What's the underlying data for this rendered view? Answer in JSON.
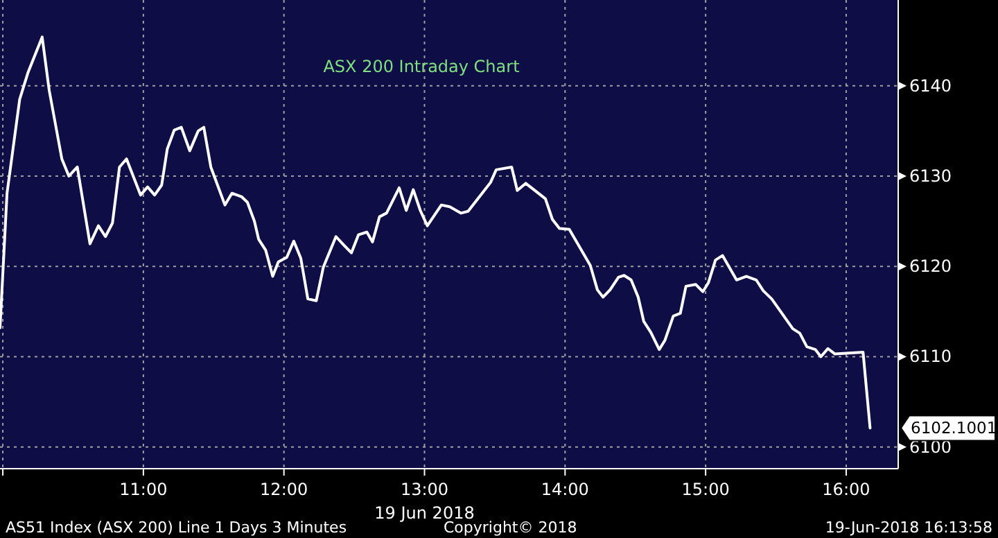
{
  "chart_data": {
    "type": "line",
    "title": "ASX 200 Intraday Chart",
    "xlabel": "19 Jun 2018",
    "x": [
      9.98,
      10.03,
      10.12,
      10.18,
      10.28,
      10.33,
      10.42,
      10.47,
      10.53,
      10.62,
      10.68,
      10.73,
      10.78,
      10.83,
      10.88,
      10.93,
      10.98,
      11.03,
      11.08,
      11.13,
      11.17,
      11.22,
      11.27,
      11.33,
      11.39,
      11.43,
      11.48,
      11.58,
      11.63,
      11.7,
      11.74,
      11.79,
      11.82,
      11.87,
      11.92,
      11.96,
      12.02,
      12.07,
      12.12,
      12.17,
      12.23,
      12.28,
      12.37,
      12.43,
      12.48,
      12.53,
      12.59,
      12.63,
      12.68,
      12.73,
      12.82,
      12.87,
      12.92,
      12.97,
      13.02,
      13.12,
      13.18,
      13.26,
      13.31,
      13.41,
      13.47,
      13.51,
      13.62,
      13.66,
      13.72,
      13.86,
      13.91,
      13.96,
      14.03,
      14.18,
      14.23,
      14.27,
      14.32,
      14.38,
      14.42,
      14.47,
      14.52,
      14.56,
      14.61,
      14.67,
      14.71,
      14.77,
      14.82,
      14.86,
      14.93,
      14.98,
      15.02,
      15.07,
      15.12,
      15.22,
      15.29,
      15.36,
      15.41,
      15.47,
      15.62,
      15.67,
      15.72,
      15.78,
      15.82,
      15.87,
      15.92,
      16.12,
      16.17
    ],
    "series": [
      {
        "color": "#ffffff",
        "values": [
          6113.2,
          6128.1,
          6138.5,
          6141.5,
          6145.4,
          6139.5,
          6131.9,
          6130,
          6131,
          6122.5,
          6124.5,
          6123.3,
          6124.8,
          6131,
          6131.9,
          6129.9,
          6127.9,
          6128.8,
          6127.9,
          6129,
          6133,
          6135.1,
          6135.4,
          6132.8,
          6135,
          6135.4,
          6131,
          6126.8,
          6128.1,
          6127.7,
          6127.1,
          6125,
          6123,
          6121.8,
          6118.9,
          6120.5,
          6121,
          6122.8,
          6120.9,
          6116.4,
          6116.2,
          6119.9,
          6123.3,
          6122.3,
          6121.5,
          6123.5,
          6123.8,
          6122.7,
          6125.5,
          6125.9,
          6128.7,
          6126.2,
          6128.5,
          6126.2,
          6124.5,
          6126.8,
          6126.6,
          6125.9,
          6126.1,
          6128.1,
          6129.3,
          6130.7,
          6131,
          6128.4,
          6129.2,
          6127.5,
          6125.2,
          6124.2,
          6124.1,
          6120.1,
          6117.4,
          6116.6,
          6117.4,
          6118.8,
          6119,
          6118.5,
          6116.6,
          6113.9,
          6112.7,
          6110.8,
          6111.8,
          6114.5,
          6114.8,
          6117.8,
          6118,
          6117.2,
          6118.2,
          6120.7,
          6121.2,
          6118.5,
          6118.9,
          6118.5,
          6117.3,
          6116.4,
          6113.1,
          6112.6,
          6111.1,
          6110.8,
          6110,
          6110.9,
          6110.3,
          6110.5,
          6102.1
        ]
      }
    ],
    "xlim": [
      9.98,
      16.37
    ],
    "ylim": [
      6097.6,
      6149.5
    ],
    "xticks": [
      {
        "value": 10,
        "label": null
      },
      {
        "value": 11,
        "label": "11:00"
      },
      {
        "value": 12,
        "label": "12:00"
      },
      {
        "value": 13,
        "label": "13:00"
      },
      {
        "value": 14,
        "label": "14:00"
      },
      {
        "value": 15,
        "label": "15:00"
      },
      {
        "value": 16,
        "label": "16:00"
      }
    ],
    "yticks": [
      6100,
      6110,
      6120,
      6130,
      6140
    ],
    "grid": true,
    "marker": "none",
    "line_style": "solid",
    "annotations": [
      {
        "text": "6102.1001",
        "x": 16.17,
        "y": 6102.1001
      },
      "AS51 Index (ASX 200) Line 1 Days 3 Minutes",
      "Copyright© 2018",
      "19-Jun-2018 16:13:58"
    ]
  }
}
